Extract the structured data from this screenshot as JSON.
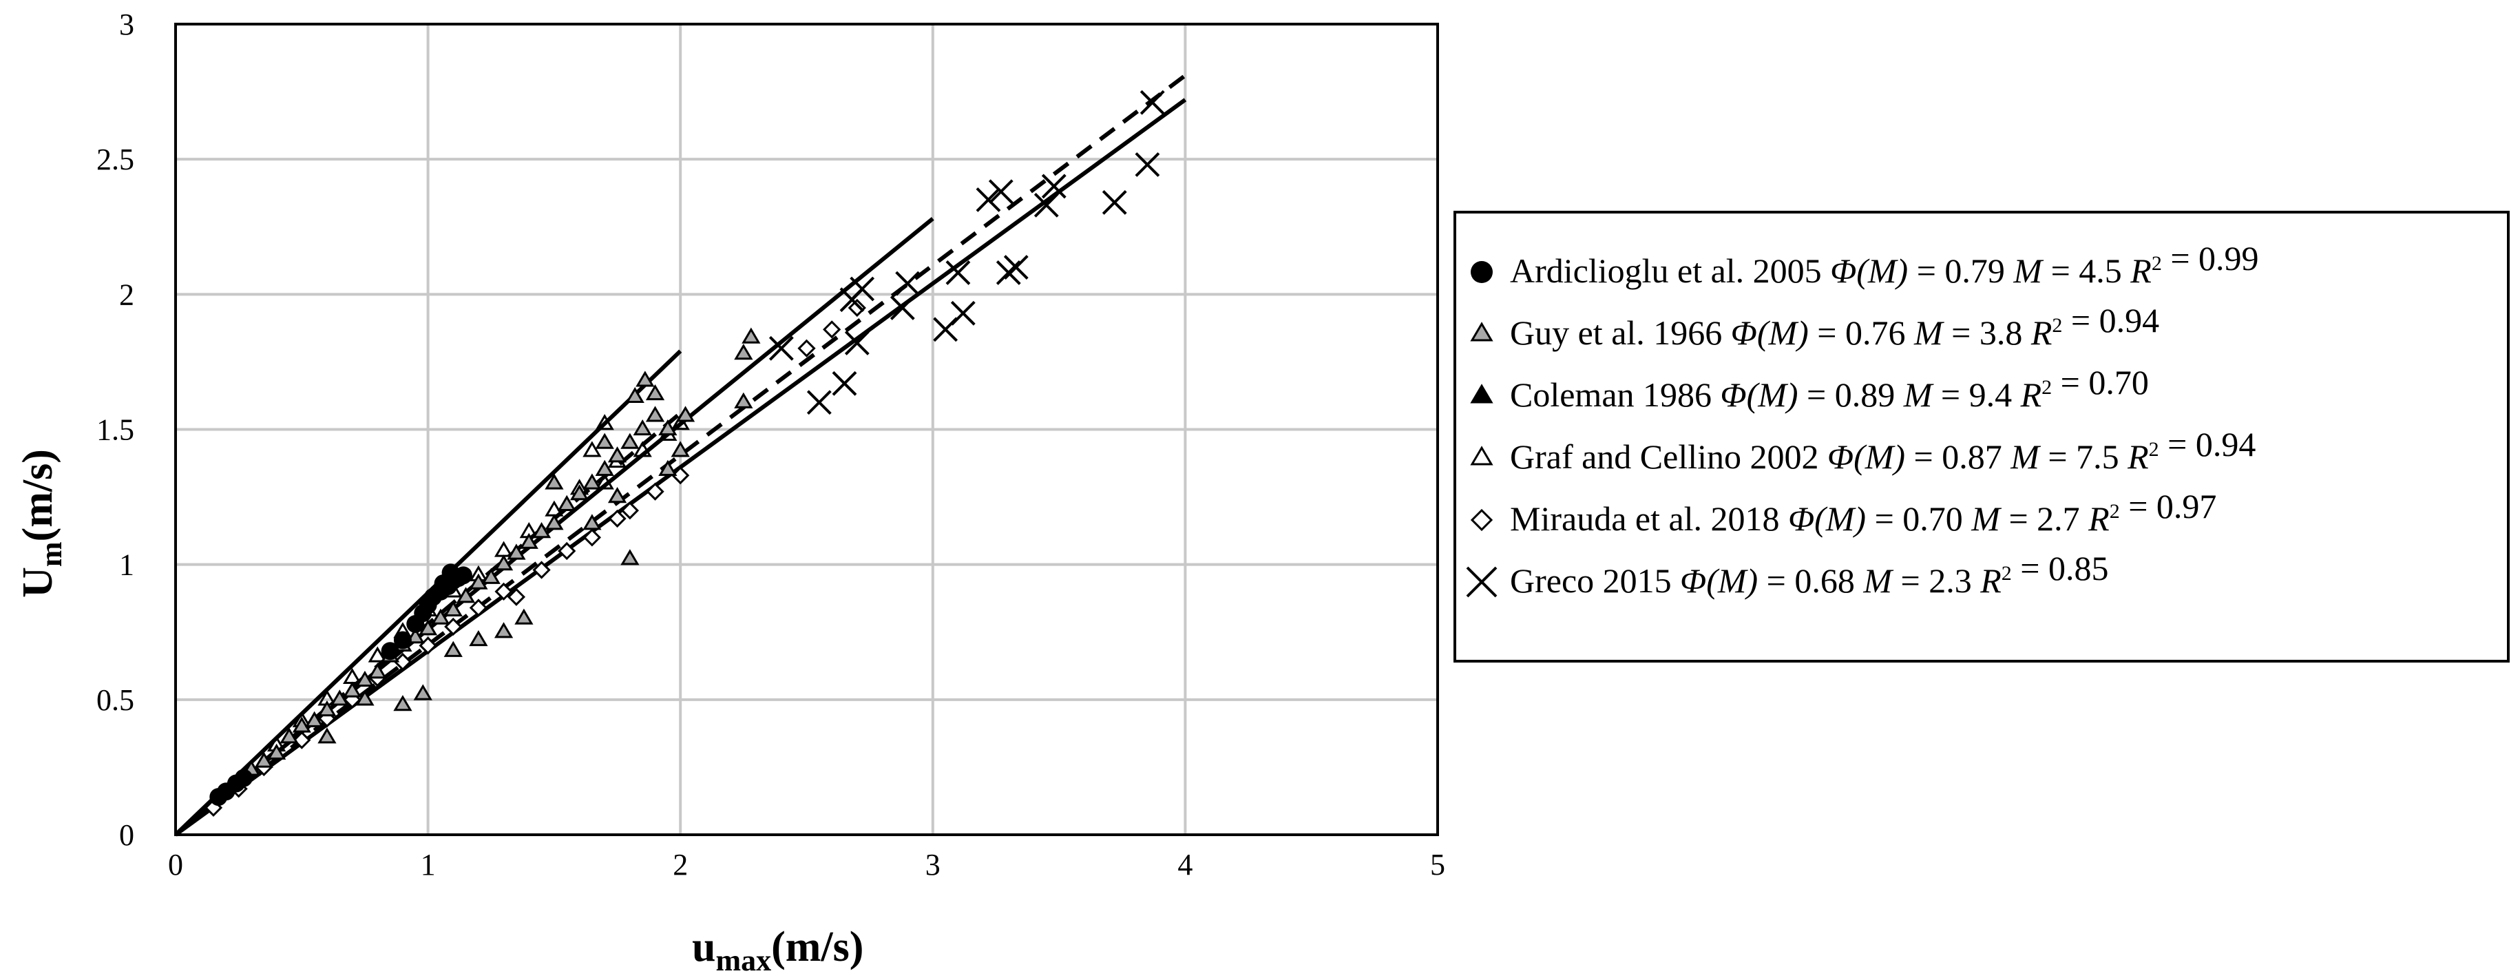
{
  "chart_data": {
    "type": "scatter",
    "title": "",
    "xlabel": {
      "main": "u",
      "sub": "max",
      "unit": "(m/s)"
    },
    "ylabel": {
      "main": "U",
      "sub": "m",
      "unit": "(m/s)"
    },
    "xlim": [
      0,
      5
    ],
    "ylim": [
      0,
      3
    ],
    "xticks": [
      "0",
      "1",
      "2",
      "3",
      "4",
      "5"
    ],
    "yticks": [
      "0",
      "0.5",
      "1",
      "1.5",
      "2",
      "2.5",
      "3"
    ],
    "grid": true,
    "legend_position": "right",
    "series": [
      {
        "name": "Ardiclioglu et al. 2005",
        "phi_label": "Φ(M)",
        "phi_value": "0.79",
        "m_label": "M",
        "m_value": "4.5",
        "r2_label": "R",
        "r2_sup": "2",
        "r2_value": "0.99",
        "marker": "filled-circle",
        "points": [
          [
            0.17,
            0.14
          ],
          [
            0.2,
            0.16
          ],
          [
            0.24,
            0.19
          ],
          [
            0.27,
            0.21
          ],
          [
            0.85,
            0.68
          ],
          [
            0.9,
            0.72
          ],
          [
            0.95,
            0.78
          ],
          [
            1.0,
            0.85
          ],
          [
            1.02,
            0.88
          ],
          [
            1.05,
            0.9
          ],
          [
            1.08,
            0.92
          ],
          [
            1.1,
            0.94
          ],
          [
            1.12,
            0.95
          ],
          [
            1.14,
            0.96
          ],
          [
            1.06,
            0.93
          ],
          [
            1.09,
            0.97
          ],
          [
            0.98,
            0.82
          ]
        ]
      },
      {
        "name": "Guy et al. 1966",
        "phi_label": "Φ(M)",
        "phi_value": "0.76",
        "m_label": "M",
        "m_value": "3.8",
        "r2_label": "R",
        "r2_sup": "2",
        "r2_value": "0.94",
        "marker": "gray-triangle",
        "points": [
          [
            0.3,
            0.24
          ],
          [
            0.35,
            0.27
          ],
          [
            0.4,
            0.3
          ],
          [
            0.45,
            0.36
          ],
          [
            0.5,
            0.4
          ],
          [
            0.55,
            0.42
          ],
          [
            0.6,
            0.46
          ],
          [
            0.65,
            0.5
          ],
          [
            0.7,
            0.53
          ],
          [
            0.75,
            0.57
          ],
          [
            0.8,
            0.6
          ],
          [
            0.85,
            0.66
          ],
          [
            0.9,
            0.7
          ],
          [
            0.95,
            0.73
          ],
          [
            1.0,
            0.76
          ],
          [
            1.05,
            0.8
          ],
          [
            1.1,
            0.83
          ],
          [
            1.15,
            0.88
          ],
          [
            1.2,
            0.93
          ],
          [
            1.25,
            0.95
          ],
          [
            1.3,
            1.0
          ],
          [
            1.35,
            1.04
          ],
          [
            1.4,
            1.08
          ],
          [
            1.45,
            1.12
          ],
          [
            1.5,
            1.15
          ],
          [
            1.55,
            1.22
          ],
          [
            1.6,
            1.26
          ],
          [
            1.65,
            1.3
          ],
          [
            1.7,
            1.35
          ],
          [
            1.75,
            1.4
          ],
          [
            1.8,
            1.45
          ],
          [
            1.85,
            1.5
          ],
          [
            1.9,
            1.55
          ],
          [
            1.95,
            1.5
          ],
          [
            2.0,
            1.42
          ],
          [
            1.82,
            1.62
          ],
          [
            1.86,
            1.68
          ],
          [
            1.9,
            1.63
          ],
          [
            2.25,
            1.78
          ],
          [
            2.28,
            1.84
          ],
          [
            2.25,
            1.6
          ],
          [
            1.8,
            1.02
          ],
          [
            0.98,
            0.52
          ],
          [
            0.9,
            0.48
          ],
          [
            0.75,
            0.5
          ],
          [
            0.6,
            0.36
          ],
          [
            1.5,
            1.3
          ],
          [
            1.65,
            1.15
          ],
          [
            1.75,
            1.25
          ],
          [
            1.95,
            1.35
          ],
          [
            2.02,
            1.55
          ],
          [
            1.7,
            1.45
          ],
          [
            1.3,
            0.75
          ],
          [
            1.38,
            0.8
          ],
          [
            1.2,
            0.72
          ],
          [
            1.1,
            0.68
          ]
        ]
      },
      {
        "name": "Coleman 1986",
        "phi_label": "Φ(M)",
        "phi_value": "0.89",
        "m_label": "M",
        "m_value": "9.4",
        "r2_label": "R",
        "r2_sup": "2",
        "r2_value": "0.70",
        "marker": "filled-triangle",
        "points": []
      },
      {
        "name": "Graf and Cellino 2002",
        "phi_label": "Φ(M)",
        "phi_value": "0.87",
        "m_label": "M",
        "m_value": "7.5",
        "r2_label": "R",
        "r2_sup": "2",
        "r2_value": "0.94",
        "marker": "open-triangle",
        "points": [
          [
            0.4,
            0.33
          ],
          [
            0.5,
            0.42
          ],
          [
            0.6,
            0.5
          ],
          [
            0.7,
            0.58
          ],
          [
            0.8,
            0.66
          ],
          [
            0.9,
            0.75
          ],
          [
            1.0,
            0.83
          ],
          [
            1.1,
            0.9
          ],
          [
            1.2,
            0.96
          ],
          [
            1.3,
            1.05
          ],
          [
            1.4,
            1.12
          ],
          [
            1.5,
            1.2
          ],
          [
            1.6,
            1.28
          ],
          [
            1.7,
            1.3
          ],
          [
            1.75,
            1.38
          ],
          [
            1.85,
            1.42
          ],
          [
            1.95,
            1.48
          ],
          [
            2.0,
            1.52
          ],
          [
            1.7,
            1.52
          ],
          [
            1.65,
            1.42
          ]
        ]
      },
      {
        "name": "Mirauda et al. 2018",
        "phi_label": "Φ(M)",
        "phi_value": "0.70",
        "m_label": "M",
        "m_value": "2.7",
        "r2_label": "R",
        "r2_sup": "2",
        "r2_value": "0.97",
        "marker": "open-diamond",
        "points": [
          [
            0.15,
            0.1
          ],
          [
            0.25,
            0.17
          ],
          [
            0.35,
            0.25
          ],
          [
            0.5,
            0.35
          ],
          [
            0.6,
            0.43
          ],
          [
            0.7,
            0.5
          ],
          [
            0.8,
            0.58
          ],
          [
            0.9,
            0.64
          ],
          [
            1.0,
            0.7
          ],
          [
            1.1,
            0.77
          ],
          [
            1.2,
            0.84
          ],
          [
            1.3,
            0.9
          ],
          [
            1.35,
            0.88
          ],
          [
            1.45,
            0.98
          ],
          [
            1.55,
            1.05
          ],
          [
            1.65,
            1.1
          ],
          [
            1.75,
            1.17
          ],
          [
            1.8,
            1.2
          ],
          [
            1.9,
            1.27
          ],
          [
            2.0,
            1.33
          ],
          [
            2.5,
            1.8
          ],
          [
            2.6,
            1.87
          ],
          [
            2.7,
            1.95
          ]
        ]
      },
      {
        "name": "Greco 2015",
        "phi_label": "Φ(M)",
        "phi_value": "0.68",
        "m_label": "M",
        "m_value": "2.3",
        "r2_label": "R",
        "r2_sup": "2",
        "r2_value": "0.85",
        "marker": "x",
        "points": [
          [
            2.4,
            1.8
          ],
          [
            2.55,
            1.6
          ],
          [
            2.65,
            1.67
          ],
          [
            2.7,
            1.82
          ],
          [
            2.68,
            1.98
          ],
          [
            2.72,
            2.02
          ],
          [
            2.88,
            1.95
          ],
          [
            2.9,
            2.04
          ],
          [
            3.05,
            1.87
          ],
          [
            3.12,
            1.93
          ],
          [
            3.1,
            2.08
          ],
          [
            3.22,
            2.35
          ],
          [
            3.27,
            2.38
          ],
          [
            3.3,
            2.08
          ],
          [
            3.33,
            2.1
          ],
          [
            3.45,
            2.33
          ],
          [
            3.48,
            2.4
          ],
          [
            3.72,
            2.34
          ],
          [
            3.85,
            2.48
          ],
          [
            3.87,
            2.71
          ]
        ]
      }
    ],
    "fit_lines": [
      {
        "style": "solid",
        "x": [
          0,
          2.0
        ],
        "y": [
          0,
          1.79
        ]
      },
      {
        "style": "solid",
        "x": [
          0,
          3.0
        ],
        "y": [
          0,
          2.28
        ]
      },
      {
        "style": "solid",
        "x": [
          0,
          4.0
        ],
        "y": [
          0,
          2.72
        ]
      },
      {
        "style": "dashed",
        "x": [
          0,
          2.0
        ],
        "y": [
          0,
          1.56
        ]
      },
      {
        "style": "dashed",
        "x": [
          0,
          4.0
        ],
        "y": [
          0,
          2.81
        ]
      }
    ]
  }
}
